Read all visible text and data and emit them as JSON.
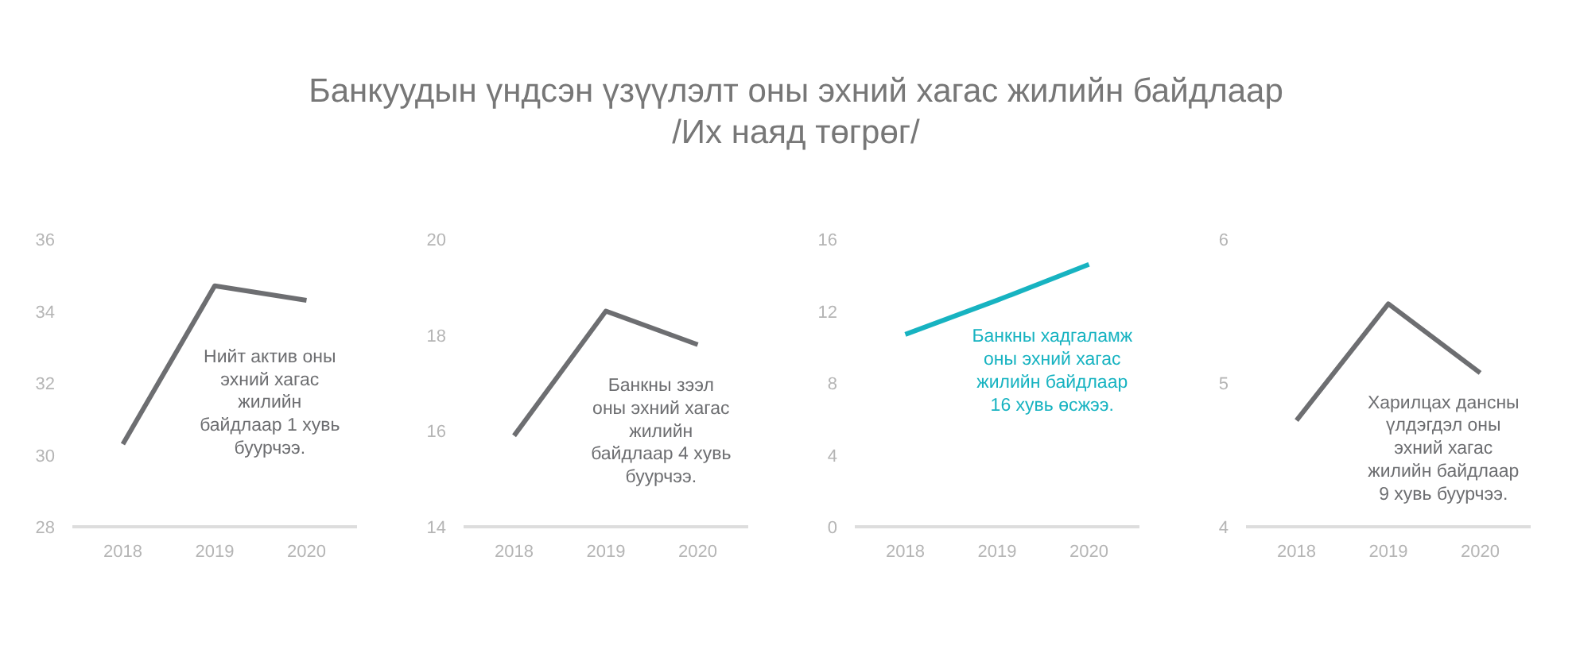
{
  "chart_data": [
    {
      "type": "line",
      "title": "Банкуудын үндсэн үзүүлэлт оны эхний хагас жилийн байдлаар\n/Их наяд төгрөг/",
      "categories": [
        "2018",
        "2019",
        "2020"
      ],
      "series": [
        {
          "color": "#6d6e71",
          "values": [
            30.3,
            34.7,
            34.3
          ]
        }
      ],
      "ylim": [
        28,
        36
      ],
      "yticks": [
        28,
        30,
        32,
        34,
        36
      ],
      "grid": false,
      "annotations": [
        "Нийт актив оны\nэхний хагас\nжилийн\nбайдлаар 1 хувь\nбуурчээ."
      ]
    },
    {
      "type": "line",
      "categories": [
        "2018",
        "2019",
        "2020"
      ],
      "series": [
        {
          "color": "#6d6e71",
          "values": [
            15.9,
            18.5,
            17.8
          ]
        }
      ],
      "ylim": [
        14,
        20
      ],
      "yticks": [
        14,
        16,
        18,
        20
      ],
      "grid": false,
      "annotations": [
        "Банкны зээл\nоны эхний хагас\nжилийн\nбайдлаар 4 хувь\nбуурчээ."
      ]
    },
    {
      "type": "line",
      "categories": [
        "2018",
        "2019",
        "2020"
      ],
      "series": [
        {
          "color": "#17b3c1",
          "values": [
            10.7,
            12.6,
            14.6
          ]
        }
      ],
      "ylim": [
        0,
        16
      ],
      "yticks": [
        0,
        4,
        8,
        12,
        16
      ],
      "grid": false,
      "annotations": [
        "Банкны хадгаламж\nоны эхний хагас\nжилийн байдлаар\n16 хувь өсжээ."
      ]
    },
    {
      "type": "line",
      "categories": [
        "2018",
        "2019",
        "2020"
      ],
      "series": [
        {
          "color": "#6d6e71",
          "values": [
            4.74,
            5.55,
            5.07
          ]
        }
      ],
      "ylim": [
        4,
        6
      ],
      "yticks": [
        4,
        5,
        6
      ],
      "grid": false,
      "annotations": [
        "Харилцах дансны\nүлдэгдэл оны\nэхний хагас\nжилийн байдлаар\n9 хувь буурчээ."
      ]
    }
  ]
}
